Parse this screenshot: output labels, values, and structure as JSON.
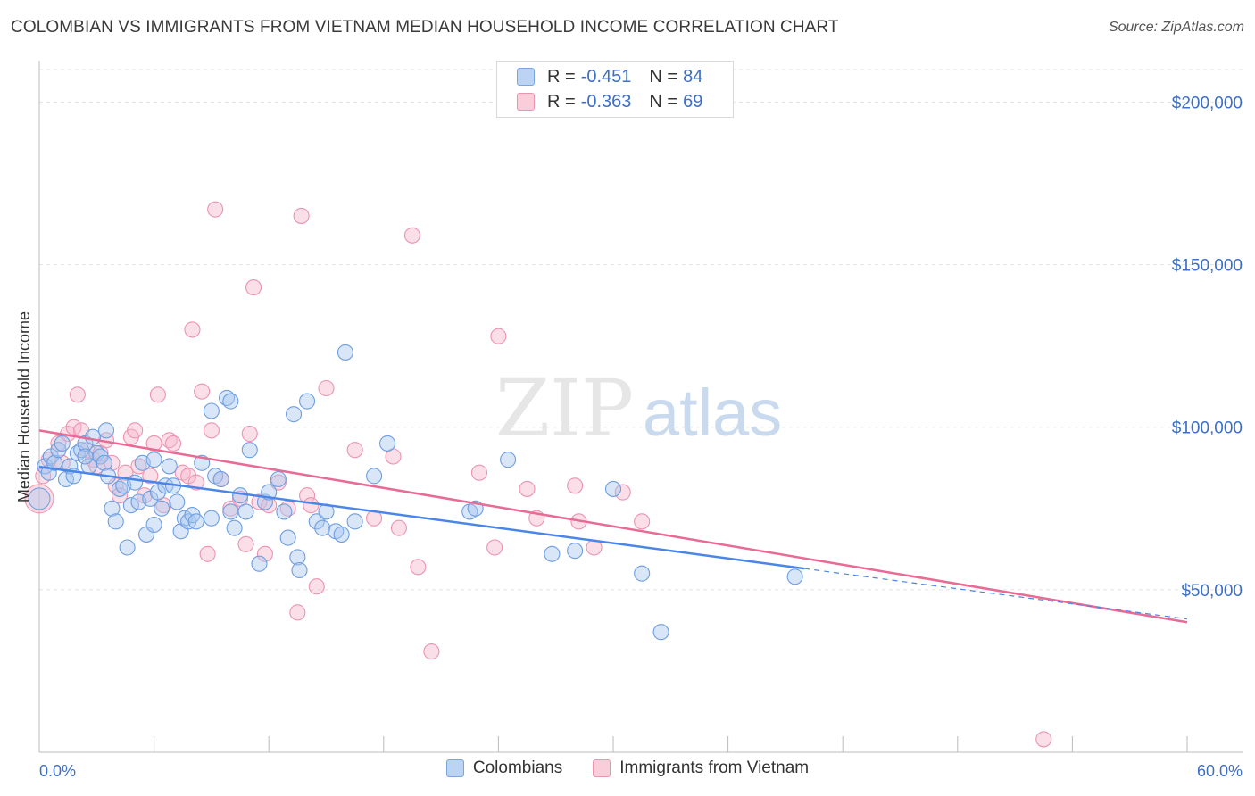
{
  "title": "COLOMBIAN VS IMMIGRANTS FROM VIETNAM MEDIAN HOUSEHOLD INCOME CORRELATION CHART",
  "source": "Source: ZipAtlas.com",
  "watermark": {
    "zip": "ZIP",
    "atlas": "atlas"
  },
  "legend": {
    "rows": [
      {
        "r_label": "R =",
        "r_value": "-0.451",
        "n_label": "N =",
        "n_value": "84",
        "color": "#a8c8f0"
      },
      {
        "r_label": "R =",
        "r_value": "-0.363",
        "n_label": "N =",
        "n_value": "69",
        "color": "#f6b8cc"
      }
    ]
  },
  "bottom_legend": [
    {
      "label": "Colombians",
      "color": "#a8c8f0"
    },
    {
      "label": "Immigrants from Vietnam",
      "color": "#f6b8cc"
    }
  ],
  "chart_data": {
    "type": "scatter",
    "title": "COLOMBIAN VS IMMIGRANTS FROM VIETNAM MEDIAN HOUSEHOLD INCOME CORRELATION CHART",
    "xlabel": "",
    "ylabel": "Median Household Income",
    "xlim": [
      0,
      60
    ],
    "ylim": [
      0,
      210000
    ],
    "x_tick_labels": [
      "0.0%",
      "60.0%"
    ],
    "y_ticks": [
      50000,
      100000,
      150000,
      200000
    ],
    "y_tick_labels": [
      "$50,000",
      "$100,000",
      "$150,000",
      "$200,000"
    ],
    "grid": true,
    "legend_position": "top-center",
    "series": [
      {
        "name": "Colombians",
        "color": "#4a86e8",
        "fill": "#a8c8f0",
        "trend": {
          "x0": 0,
          "y0": 87800,
          "x1": 40,
          "y1": 56500,
          "dashed_to_x": 60,
          "dashed_to_y": 41000
        },
        "points": [
          [
            0.3,
            88000
          ],
          [
            0.5,
            86000
          ],
          [
            0.6,
            91000
          ],
          [
            0.8,
            89000
          ],
          [
            1.0,
            93000
          ],
          [
            1.2,
            95000
          ],
          [
            1.4,
            84000
          ],
          [
            1.6,
            88000
          ],
          [
            1.8,
            85000
          ],
          [
            2.0,
            92000
          ],
          [
            2.2,
            93000
          ],
          [
            2.4,
            95000
          ],
          [
            2.6,
            88000
          ],
          [
            2.8,
            97000
          ],
          [
            3.0,
            92000
          ],
          [
            3.2,
            91000
          ],
          [
            3.4,
            89000
          ],
          [
            3.6,
            85000
          ],
          [
            3.8,
            75000
          ],
          [
            4.0,
            71000
          ],
          [
            4.2,
            81000
          ],
          [
            4.4,
            82000
          ],
          [
            4.6,
            63000
          ],
          [
            4.8,
            76000
          ],
          [
            5.0,
            83000
          ],
          [
            5.2,
            77000
          ],
          [
            5.4,
            89000
          ],
          [
            5.6,
            67000
          ],
          [
            5.8,
            78000
          ],
          [
            6.0,
            70000
          ],
          [
            6.2,
            80000
          ],
          [
            6.4,
            75000
          ],
          [
            6.6,
            82000
          ],
          [
            6.8,
            88000
          ],
          [
            7.0,
            82000
          ],
          [
            7.2,
            77000
          ],
          [
            7.4,
            68000
          ],
          [
            7.6,
            72000
          ],
          [
            7.8,
            71000
          ],
          [
            8.0,
            73000
          ],
          [
            8.2,
            71000
          ],
          [
            8.5,
            89000
          ],
          [
            9.0,
            105000
          ],
          [
            9.2,
            85000
          ],
          [
            9.5,
            84000
          ],
          [
            9.8,
            109000
          ],
          [
            10.0,
            74000
          ],
          [
            10.2,
            69000
          ],
          [
            10.5,
            79000
          ],
          [
            10.8,
            74000
          ],
          [
            11.0,
            93000
          ],
          [
            11.5,
            58000
          ],
          [
            11.8,
            77000
          ],
          [
            12.0,
            80000
          ],
          [
            12.5,
            84000
          ],
          [
            12.8,
            74000
          ],
          [
            13.0,
            66000
          ],
          [
            13.3,
            104000
          ],
          [
            13.5,
            60000
          ],
          [
            13.6,
            56000
          ],
          [
            14.0,
            108000
          ],
          [
            14.5,
            71000
          ],
          [
            14.8,
            69000
          ],
          [
            15.0,
            74000
          ],
          [
            15.5,
            68000
          ],
          [
            15.8,
            67000
          ],
          [
            16.0,
            123000
          ],
          [
            16.5,
            71000
          ],
          [
            17.5,
            85000
          ],
          [
            18.2,
            95000
          ],
          [
            22.5,
            74000
          ],
          [
            22.8,
            75000
          ],
          [
            24.5,
            90000
          ],
          [
            26.8,
            61000
          ],
          [
            28.0,
            62000
          ],
          [
            30.0,
            81000
          ],
          [
            31.5,
            55000
          ],
          [
            32.5,
            37000
          ],
          [
            39.5,
            54000
          ],
          [
            10.0,
            108000
          ],
          [
            9.0,
            72000
          ],
          [
            6.0,
            90000
          ],
          [
            3.5,
            99000
          ],
          [
            2.4,
            91000
          ]
        ]
      },
      {
        "name": "Immigrants from Vietnam",
        "color": "#e86a95",
        "fill": "#f6b8cc",
        "trend": {
          "x0": 0,
          "y0": 99000,
          "x1": 60,
          "y1": 40000
        },
        "points": [
          [
            0.2,
            85000
          ],
          [
            0.5,
            90000
          ],
          [
            1.0,
            95000
          ],
          [
            1.2,
            89000
          ],
          [
            1.5,
            98000
          ],
          [
            1.8,
            100000
          ],
          [
            2.0,
            110000
          ],
          [
            2.2,
            99000
          ],
          [
            2.5,
            93000
          ],
          [
            2.8,
            90000
          ],
          [
            3.0,
            88000
          ],
          [
            3.2,
            92000
          ],
          [
            3.5,
            96000
          ],
          [
            3.8,
            89000
          ],
          [
            4.0,
            82000
          ],
          [
            4.2,
            79000
          ],
          [
            4.5,
            86000
          ],
          [
            4.8,
            97000
          ],
          [
            5.0,
            99000
          ],
          [
            5.2,
            88000
          ],
          [
            5.5,
            79000
          ],
          [
            5.8,
            85000
          ],
          [
            6.0,
            95000
          ],
          [
            6.2,
            110000
          ],
          [
            6.5,
            76000
          ],
          [
            6.8,
            96000
          ],
          [
            7.0,
            95000
          ],
          [
            7.5,
            86000
          ],
          [
            7.8,
            85000
          ],
          [
            8.0,
            130000
          ],
          [
            8.2,
            83000
          ],
          [
            8.5,
            111000
          ],
          [
            8.8,
            61000
          ],
          [
            9.0,
            99000
          ],
          [
            9.2,
            167000
          ],
          [
            9.5,
            84000
          ],
          [
            10.0,
            75000
          ],
          [
            10.5,
            78000
          ],
          [
            10.8,
            64000
          ],
          [
            11.0,
            98000
          ],
          [
            11.2,
            143000
          ],
          [
            11.5,
            77000
          ],
          [
            11.8,
            61000
          ],
          [
            12.0,
            76000
          ],
          [
            12.5,
            83000
          ],
          [
            13.0,
            75000
          ],
          [
            13.5,
            43000
          ],
          [
            13.7,
            165000
          ],
          [
            14.0,
            79000
          ],
          [
            14.2,
            76000
          ],
          [
            14.5,
            51000
          ],
          [
            15.0,
            112000
          ],
          [
            16.5,
            93000
          ],
          [
            17.5,
            72000
          ],
          [
            18.5,
            91000
          ],
          [
            18.8,
            69000
          ],
          [
            19.5,
            159000
          ],
          [
            19.8,
            57000
          ],
          [
            20.5,
            31000
          ],
          [
            23.0,
            86000
          ],
          [
            23.8,
            63000
          ],
          [
            24.0,
            128000
          ],
          [
            25.5,
            81000
          ],
          [
            26.0,
            72000
          ],
          [
            28.0,
            82000
          ],
          [
            28.2,
            71000
          ],
          [
            29.0,
            63000
          ],
          [
            30.5,
            80000
          ],
          [
            31.5,
            71000
          ]
        ]
      }
    ],
    "extra_points_note_pink_low": [
      52.5,
      4000
    ]
  }
}
